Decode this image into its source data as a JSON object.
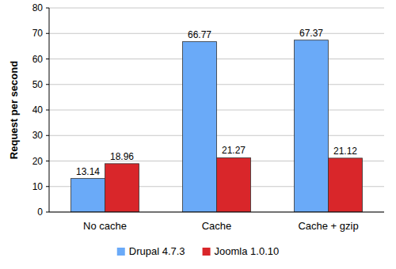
{
  "chart_data": {
    "type": "bar",
    "ylabel": "Request per second",
    "categories": [
      "No cache",
      "Cache",
      "Cache + gzip"
    ],
    "series": [
      {
        "name": "Drupal 4.7.3",
        "color": "#6aaaf8",
        "values": [
          13.14,
          66.77,
          67.37
        ]
      },
      {
        "name": "Joomla 1.0.10",
        "color": "#d9262a",
        "values": [
          18.96,
          21.27,
          21.12
        ]
      }
    ],
    "ylim": [
      0,
      80
    ],
    "yticks": [
      0,
      10,
      20,
      30,
      40,
      50,
      60,
      70,
      80
    ],
    "grid": true,
    "legend": "bottom",
    "data_labels": true
  }
}
